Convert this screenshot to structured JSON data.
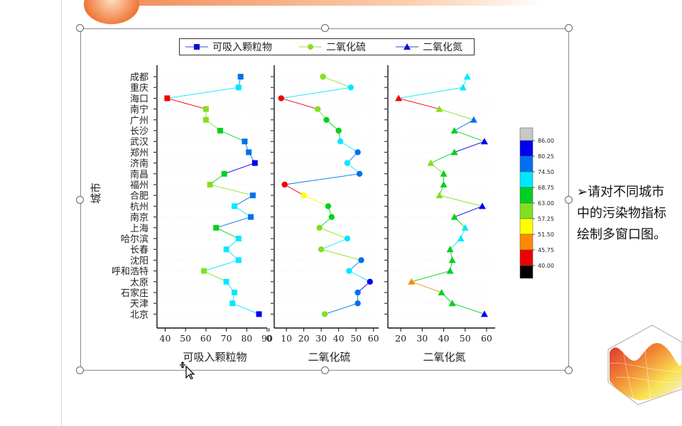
{
  "chart_data": {
    "type": "scatter",
    "categories": [
      "成都",
      "重庆",
      "海口",
      "南宁",
      "广州",
      "长沙",
      "武汉",
      "郑州",
      "济南",
      "南昌",
      "福州",
      "合肥",
      "杭州",
      "南京",
      "上海",
      "哈尔滨",
      "长春",
      "沈阳",
      "呼和浩特",
      "太原",
      "石家庄",
      "天津",
      "北京"
    ],
    "ylabel": "城市",
    "legend_position": "top",
    "grid": false,
    "series": [
      {
        "name": "可吸入颗粒物",
        "xlabel": "可吸入颗粒物",
        "marker": "square",
        "xlim": [
          36,
          90
        ],
        "ticks": [
          "40",
          "50",
          "60",
          "70",
          "80",
          "90"
        ],
        "tick_values": [
          40,
          50,
          60,
          70,
          80,
          90
        ],
        "values": [
          77,
          76,
          41,
          60,
          60,
          67,
          79,
          81,
          84,
          69,
          62,
          83,
          74,
          82,
          65,
          76,
          70,
          76,
          59,
          70,
          74,
          73,
          86
        ]
      },
      {
        "name": "二氧化硫",
        "xlabel": "二氧化硫",
        "marker": "circle",
        "xlim": [
          3,
          63
        ],
        "ticks": [
          "0",
          "10",
          "20",
          "30",
          "40",
          "50",
          "60"
        ],
        "tick_values": [
          0,
          10,
          20,
          30,
          40,
          50,
          60
        ],
        "values": [
          31,
          47,
          7,
          28,
          33,
          40,
          41,
          51,
          45,
          52,
          9,
          20,
          34,
          36,
          29,
          45,
          30,
          53,
          46,
          58,
          51,
          51,
          32
        ]
      },
      {
        "name": "二氧化氮",
        "xlabel": "二氧化氮",
        "marker": "triangle",
        "xlim": [
          14,
          64
        ],
        "ticks": [
          "20",
          "30",
          "40",
          "50",
          "60"
        ],
        "tick_values": [
          20,
          30,
          40,
          50,
          60
        ],
        "values": [
          51,
          49,
          19,
          38,
          54,
          45,
          59,
          45,
          34,
          40,
          40,
          38,
          58,
          45,
          50,
          48,
          43,
          44,
          43,
          25,
          39,
          44,
          59
        ]
      }
    ],
    "colorbar": {
      "labels": [
        "86.00",
        "80.25",
        "74.50",
        "68.75",
        "63.00",
        "57.25",
        "51.50",
        "45.75",
        "40.00"
      ],
      "colors": [
        "#c8c8c8",
        "#0000ee",
        "#0070f0",
        "#00e8ff",
        "#00d020",
        "#80e020",
        "#ffff00",
        "#ff8800",
        "#ee0000",
        "#000000"
      ]
    }
  },
  "note": {
    "line1": "➢请对不同城市",
    "line2": "中的污染物指标",
    "line3": "绘制多窗口图。"
  }
}
